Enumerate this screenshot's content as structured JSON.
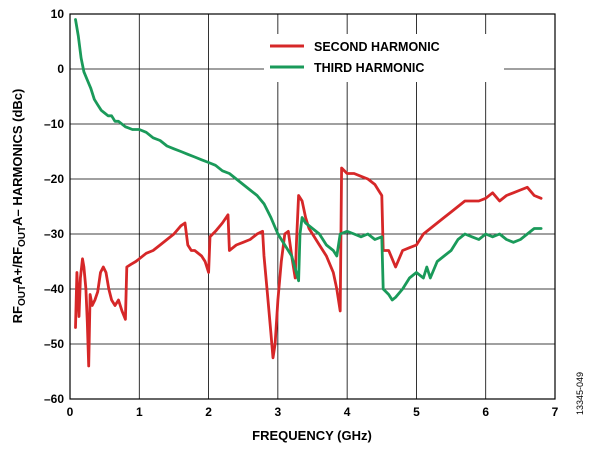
{
  "chart_data": {
    "type": "line",
    "xlabel": "FREQUENCY (GHz)",
    "ylabel": "RFOUTA+/RFOUTA– HARMONICS (dBc)",
    "ylabel_parts": [
      {
        "text": "RF",
        "sub": false
      },
      {
        "text": "OUT",
        "sub": true
      },
      {
        "text": "A+/RF",
        "sub": false
      },
      {
        "text": "OUT",
        "sub": true
      },
      {
        "text": "A– HARMONICS (dBc)",
        "sub": false
      }
    ],
    "xlim": [
      0,
      7
    ],
    "ylim": [
      -60,
      10
    ],
    "xticks": [
      0,
      1,
      2,
      3,
      4,
      5,
      6,
      7
    ],
    "xtick_labels": [
      "0",
      "1",
      "2",
      "3",
      "4",
      "5",
      "6",
      "7"
    ],
    "yticks": [
      10,
      0,
      -10,
      -20,
      -30,
      -40,
      -50,
      -60
    ],
    "ytick_labels": [
      "10",
      "0",
      "–10",
      "–20",
      "–30",
      "–40",
      "–50",
      "–60"
    ],
    "grid": true,
    "legend_position": "top-right",
    "figure_id": "13345-049",
    "series": [
      {
        "name": "SECOND HARMONIC",
        "color": "#d62728",
        "points": [
          [
            0.08,
            -47
          ],
          [
            0.1,
            -37
          ],
          [
            0.13,
            -45
          ],
          [
            0.15,
            -38
          ],
          [
            0.18,
            -34.5
          ],
          [
            0.2,
            -36
          ],
          [
            0.23,
            -40
          ],
          [
            0.25,
            -46
          ],
          [
            0.27,
            -54
          ],
          [
            0.29,
            -41
          ],
          [
            0.32,
            -43
          ],
          [
            0.36,
            -42
          ],
          [
            0.4,
            -40.5
          ],
          [
            0.44,
            -37
          ],
          [
            0.48,
            -36
          ],
          [
            0.52,
            -37
          ],
          [
            0.56,
            -40
          ],
          [
            0.6,
            -42
          ],
          [
            0.65,
            -43
          ],
          [
            0.7,
            -42
          ],
          [
            0.75,
            -44
          ],
          [
            0.8,
            -45.5
          ],
          [
            0.82,
            -36
          ],
          [
            0.88,
            -35.5
          ],
          [
            0.95,
            -35
          ],
          [
            1.0,
            -34.5
          ],
          [
            1.1,
            -33.5
          ],
          [
            1.2,
            -33
          ],
          [
            1.3,
            -32
          ],
          [
            1.4,
            -31
          ],
          [
            1.5,
            -30
          ],
          [
            1.6,
            -28.5
          ],
          [
            1.66,
            -28
          ],
          [
            1.7,
            -32
          ],
          [
            1.75,
            -33
          ],
          [
            1.8,
            -33
          ],
          [
            1.9,
            -34
          ],
          [
            1.95,
            -35
          ],
          [
            2.0,
            -37
          ],
          [
            2.02,
            -30.5
          ],
          [
            2.1,
            -29.5
          ],
          [
            2.2,
            -28
          ],
          [
            2.28,
            -26.5
          ],
          [
            2.3,
            -33
          ],
          [
            2.4,
            -32
          ],
          [
            2.5,
            -31.5
          ],
          [
            2.6,
            -31
          ],
          [
            2.7,
            -30
          ],
          [
            2.78,
            -29.5
          ],
          [
            2.8,
            -34
          ],
          [
            2.85,
            -41
          ],
          [
            2.9,
            -48
          ],
          [
            2.93,
            -52.5
          ],
          [
            2.96,
            -50
          ],
          [
            3.0,
            -42
          ],
          [
            3.05,
            -35
          ],
          [
            3.1,
            -30
          ],
          [
            3.15,
            -29.5
          ],
          [
            3.2,
            -34
          ],
          [
            3.25,
            -38
          ],
          [
            3.27,
            -31
          ],
          [
            3.3,
            -23
          ],
          [
            3.35,
            -24
          ],
          [
            3.4,
            -27
          ],
          [
            3.45,
            -29
          ],
          [
            3.5,
            -30
          ],
          [
            3.6,
            -32
          ],
          [
            3.7,
            -34
          ],
          [
            3.8,
            -37
          ],
          [
            3.85,
            -40
          ],
          [
            3.9,
            -44
          ],
          [
            3.92,
            -18
          ],
          [
            4.0,
            -19
          ],
          [
            4.1,
            -19
          ],
          [
            4.2,
            -19.5
          ],
          [
            4.3,
            -20
          ],
          [
            4.4,
            -21
          ],
          [
            4.45,
            -22
          ],
          [
            4.5,
            -23
          ],
          [
            4.52,
            -33
          ],
          [
            4.6,
            -33
          ],
          [
            4.7,
            -36
          ],
          [
            4.8,
            -33
          ],
          [
            4.9,
            -32.5
          ],
          [
            5.0,
            -32
          ],
          [
            5.1,
            -30
          ],
          [
            5.2,
            -29
          ],
          [
            5.3,
            -28
          ],
          [
            5.4,
            -27
          ],
          [
            5.5,
            -26
          ],
          [
            5.6,
            -25
          ],
          [
            5.7,
            -24
          ],
          [
            5.8,
            -24
          ],
          [
            5.9,
            -24
          ],
          [
            6.0,
            -23.5
          ],
          [
            6.1,
            -22.5
          ],
          [
            6.2,
            -24
          ],
          [
            6.3,
            -23
          ],
          [
            6.4,
            -22.5
          ],
          [
            6.5,
            -22
          ],
          [
            6.6,
            -21.5
          ],
          [
            6.7,
            -23
          ],
          [
            6.8,
            -23.5
          ]
        ]
      },
      {
        "name": "THIRD HARMONIC",
        "color": "#1a9a5a",
        "points": [
          [
            0.08,
            9
          ],
          [
            0.12,
            6
          ],
          [
            0.16,
            2
          ],
          [
            0.2,
            -0.5
          ],
          [
            0.25,
            -2
          ],
          [
            0.3,
            -3.5
          ],
          [
            0.35,
            -5.5
          ],
          [
            0.4,
            -6.5
          ],
          [
            0.45,
            -7.5
          ],
          [
            0.5,
            -8
          ],
          [
            0.55,
            -8.5
          ],
          [
            0.6,
            -8.5
          ],
          [
            0.65,
            -9.5
          ],
          [
            0.7,
            -9.5
          ],
          [
            0.8,
            -10.5
          ],
          [
            0.9,
            -11
          ],
          [
            1.0,
            -11
          ],
          [
            1.1,
            -11.5
          ],
          [
            1.2,
            -12.5
          ],
          [
            1.3,
            -13
          ],
          [
            1.4,
            -14
          ],
          [
            1.5,
            -14.5
          ],
          [
            1.6,
            -15
          ],
          [
            1.7,
            -15.5
          ],
          [
            1.8,
            -16
          ],
          [
            1.9,
            -16.5
          ],
          [
            2.0,
            -17
          ],
          [
            2.1,
            -17.5
          ],
          [
            2.2,
            -18.5
          ],
          [
            2.3,
            -19
          ],
          [
            2.4,
            -20
          ],
          [
            2.5,
            -21
          ],
          [
            2.6,
            -22
          ],
          [
            2.7,
            -23
          ],
          [
            2.8,
            -24.5
          ],
          [
            2.9,
            -27
          ],
          [
            3.0,
            -30
          ],
          [
            3.1,
            -32
          ],
          [
            3.2,
            -34
          ],
          [
            3.3,
            -38.5
          ],
          [
            3.32,
            -30
          ],
          [
            3.35,
            -27
          ],
          [
            3.4,
            -28
          ],
          [
            3.5,
            -29
          ],
          [
            3.6,
            -30
          ],
          [
            3.7,
            -32
          ],
          [
            3.8,
            -33
          ],
          [
            3.85,
            -34
          ],
          [
            3.9,
            -30
          ],
          [
            4.0,
            -29.5
          ],
          [
            4.1,
            -30
          ],
          [
            4.2,
            -30.5
          ],
          [
            4.3,
            -30
          ],
          [
            4.4,
            -31
          ],
          [
            4.5,
            -30.5
          ],
          [
            4.52,
            -40
          ],
          [
            4.6,
            -41
          ],
          [
            4.65,
            -42
          ],
          [
            4.7,
            -41.5
          ],
          [
            4.8,
            -40
          ],
          [
            4.9,
            -38
          ],
          [
            5.0,
            -37
          ],
          [
            5.1,
            -38
          ],
          [
            5.15,
            -36
          ],
          [
            5.2,
            -38
          ],
          [
            5.3,
            -35
          ],
          [
            5.4,
            -34
          ],
          [
            5.5,
            -33
          ],
          [
            5.6,
            -31
          ],
          [
            5.7,
            -30
          ],
          [
            5.8,
            -30.5
          ],
          [
            5.9,
            -31
          ],
          [
            6.0,
            -30
          ],
          [
            6.1,
            -30.5
          ],
          [
            6.2,
            -30
          ],
          [
            6.3,
            -31
          ],
          [
            6.4,
            -31.5
          ],
          [
            6.5,
            -31
          ],
          [
            6.6,
            -30
          ],
          [
            6.7,
            -29
          ],
          [
            6.8,
            -29
          ]
        ]
      }
    ]
  }
}
